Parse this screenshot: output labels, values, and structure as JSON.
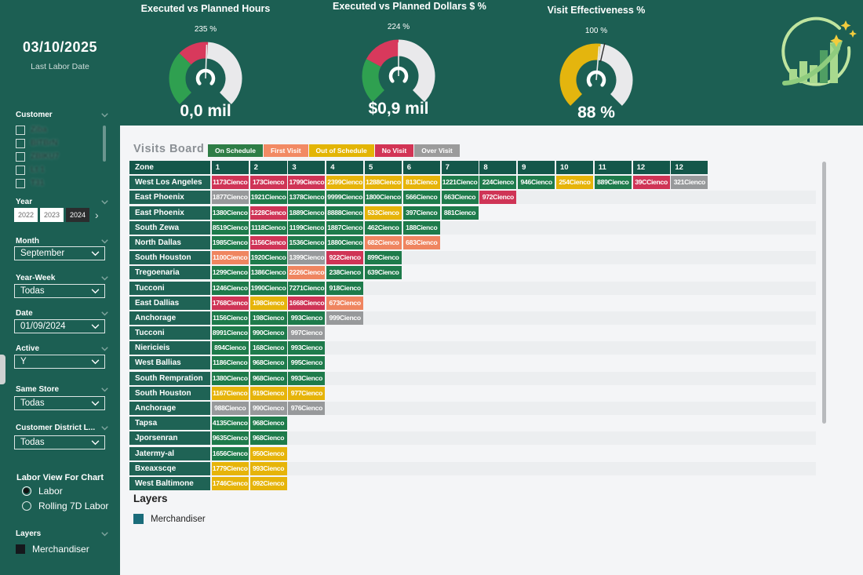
{
  "app": {
    "background": "#1C5F53",
    "panel_background": "#F4F5F7"
  },
  "header": {
    "date": "03/10/2025",
    "date_caption": "Last Labor Date",
    "gauges": [
      {
        "title": "Executed vs Planned Hours",
        "top_label": "235 %",
        "value_label": "0,0 mil",
        "needle_angle": 2,
        "target_tick_angle": null,
        "segments": [
          {
            "color": "#2FA050",
            "from": -135,
            "to": -46
          },
          {
            "color": "#D8395C",
            "from": -46,
            "to": 4
          },
          {
            "color": "#E9E9EB",
            "from": 4,
            "to": 135
          }
        ]
      },
      {
        "title": "Executed vs Planned Dollars $ %",
        "top_label": "224 %",
        "value_label": "$0,9 mil",
        "needle_angle": 0,
        "target_tick_angle": null,
        "segments": [
          {
            "color": "#2FA050",
            "from": -135,
            "to": -62
          },
          {
            "color": "#D8395C",
            "from": -62,
            "to": 0
          },
          {
            "color": "#E9E9EB",
            "from": 0,
            "to": 135
          }
        ]
      },
      {
        "title": "Visit Effectiveness %",
        "top_label": "100 %",
        "value_label": "88 %",
        "needle_angle": 5,
        "target_tick_angle": 13,
        "segments": [
          {
            "color": "#E4B50E",
            "from": -135,
            "to": 7
          },
          {
            "color": "#E9E9EB",
            "from": 7,
            "to": 135
          }
        ]
      }
    ]
  },
  "sidebar": {
    "customer": {
      "label": "Customer",
      "items": [
        "Ziba",
        "BITBrN",
        "ZBIKU7",
        "Lt 1",
        "T31"
      ]
    },
    "year": {
      "label": "Year",
      "options": [
        "2022",
        "2023",
        "2024"
      ],
      "selected": "2024",
      "arrow": "›"
    },
    "month": {
      "label": "Month",
      "value": "September"
    },
    "year_week": {
      "label": "Year-Week",
      "value": "Todas"
    },
    "date": {
      "label": "Date",
      "value": "01/09/2024"
    },
    "active": {
      "label": "Active",
      "value": "Y"
    },
    "same_store": {
      "label": "Same Store",
      "value": "Todas"
    },
    "customer_district": {
      "label": "Customer District L...",
      "value": "Todas"
    },
    "labor_view": {
      "label": "Labor View For Chart",
      "options": [
        {
          "label": "Labor",
          "selected": true
        },
        {
          "label": "Rolling 7D Labor",
          "selected": false
        }
      ]
    },
    "layers": {
      "label": "Layers",
      "items": [
        {
          "label": "Merchandiser",
          "checked": true
        }
      ]
    }
  },
  "main": {
    "title": "Visits Board",
    "legend": [
      {
        "label": "On Schedule",
        "color": "#2E7D46",
        "key": "on"
      },
      {
        "label": "First Visit",
        "color": "#F28A64",
        "key": "first"
      },
      {
        "label": "Out of Schedule",
        "color": "#E3B505",
        "key": "out"
      },
      {
        "label": "No Visit",
        "color": "#D23455",
        "key": "no"
      },
      {
        "label": "Over Visit",
        "color": "#9B9B9B",
        "key": "over"
      }
    ],
    "status_colors": {
      "on": "#1E7B4B",
      "first": "#EF8560",
      "out": "#E6B40A",
      "no": "#CF3456",
      "over": "#97999B"
    },
    "table": {
      "zone_header": "Zone",
      "columns": [
        "1",
        "2",
        "3",
        "4",
        "5",
        "6",
        "7",
        "8",
        "9",
        "10",
        "11",
        "12",
        "12"
      ],
      "rows": [
        {
          "zone": "West Los Angeles",
          "cells": [
            [
              "1173Cienco",
              "no"
            ],
            [
              "173Cienco",
              "no"
            ],
            [
              "1799Cienco",
              "no"
            ],
            [
              "2399Cienco",
              "out"
            ],
            [
              "1288Cienco",
              "out"
            ],
            [
              "813Cienco",
              "out"
            ],
            [
              "1221Cienco",
              "on"
            ],
            [
              "224Cienco",
              "on"
            ],
            [
              "946Cienco",
              "on"
            ],
            [
              "254Cienco",
              "out"
            ],
            [
              "889Cienco",
              "on"
            ],
            [
              "39CCienco",
              "no"
            ],
            [
              "321Cienco",
              "over"
            ]
          ]
        },
        {
          "zone": "East Phoenix",
          "cells": [
            [
              "1877Cienco",
              "over"
            ],
            [
              "1921Cienco",
              "on"
            ],
            [
              "1378Cienco",
              "on"
            ],
            [
              "9999Cienco",
              "on"
            ],
            [
              "1800Cienco",
              "on"
            ],
            [
              "566Cienco",
              "on"
            ],
            [
              "663Cienco",
              "on"
            ],
            [
              "972Cienco",
              "no"
            ]
          ]
        },
        {
          "zone": "East Phoenix",
          "cells": [
            [
              "1380Cienco",
              "on"
            ],
            [
              "1228Cienco",
              "no"
            ],
            [
              "1889Cienco",
              "on"
            ],
            [
              "8888Cienco",
              "on"
            ],
            [
              "533Cienco",
              "out"
            ],
            [
              "397Cienco",
              "on"
            ],
            [
              "881Cienco",
              "on"
            ]
          ]
        },
        {
          "zone": "South Zewa",
          "cells": [
            [
              "8519Cienco",
              "on"
            ],
            [
              "1118Cienco",
              "on"
            ],
            [
              "1199Cienco",
              "on"
            ],
            [
              "1887Cienco",
              "on"
            ],
            [
              "462Cienco",
              "on"
            ],
            [
              "188Cienco",
              "on"
            ]
          ]
        },
        {
          "zone": "North Dallas",
          "cells": [
            [
              "1985Cienco",
              "on"
            ],
            [
              "1156Cienco",
              "no"
            ],
            [
              "1536Cienco",
              "on"
            ],
            [
              "1880Cienco",
              "on"
            ],
            [
              "682Cienco",
              "first"
            ],
            [
              "683Cienco",
              "first"
            ]
          ]
        },
        {
          "zone": "South Houston",
          "cells": [
            [
              "1100Cienco",
              "first"
            ],
            [
              "1920Cienco",
              "on"
            ],
            [
              "1399Cienco",
              "over"
            ],
            [
              "922Cienco",
              "no"
            ],
            [
              "899Cienco",
              "on"
            ]
          ]
        },
        {
          "zone": "Tregoenaria",
          "cells": [
            [
              "1299Cienco",
              "on"
            ],
            [
              "1386Cienco",
              "on"
            ],
            [
              "2226Cienco",
              "first"
            ],
            [
              "238Cienco",
              "on"
            ],
            [
              "639Cienco",
              "on"
            ]
          ]
        },
        {
          "zone": "Tucconi",
          "cells": [
            [
              "1246Cienco",
              "on"
            ],
            [
              "1990Cienco",
              "on"
            ],
            [
              "7271Cienco",
              "on"
            ],
            [
              "918Cienco",
              "on"
            ]
          ]
        },
        {
          "zone": "East Dallias",
          "cells": [
            [
              "1768Cienco",
              "no"
            ],
            [
              "198Cienco",
              "out"
            ],
            [
              "1668Cienco",
              "no"
            ],
            [
              "673Cienco",
              "first"
            ]
          ]
        },
        {
          "zone": "Anchorage",
          "cells": [
            [
              "1156Cienco",
              "on"
            ],
            [
              "198Cienco",
              "on"
            ],
            [
              "993Cienco",
              "on"
            ],
            [
              "999Cienco",
              "over"
            ]
          ]
        },
        {
          "zone": "Tucconi",
          "cells": [
            [
              "8991Cienco",
              "on"
            ],
            [
              "990Cienco",
              "on"
            ],
            [
              "997Cienco",
              "over"
            ]
          ]
        },
        {
          "zone": "Niericieis",
          "cells": [
            [
              "894Cienco",
              "on"
            ],
            [
              "168Cienco",
              "on"
            ],
            [
              "993Cienco",
              "on"
            ]
          ]
        },
        {
          "zone": "West Ballias",
          "cells": [
            [
              "1186Cienco",
              "on"
            ],
            [
              "968Cienco",
              "on"
            ],
            [
              "995Cienco",
              "on"
            ]
          ]
        },
        {
          "zone": "South Rempration",
          "cells": [
            [
              "1380Cienco",
              "on"
            ],
            [
              "968Cienco",
              "on"
            ],
            [
              "993Cienco",
              "on"
            ]
          ]
        },
        {
          "zone": "South Houston",
          "cells": [
            [
              "1167Cienco",
              "out"
            ],
            [
              "919Cienco",
              "out"
            ],
            [
              "977Cienco",
              "out"
            ]
          ]
        },
        {
          "zone": "Anchorage",
          "cells": [
            [
              "988Cienco",
              "over"
            ],
            [
              "990Cienco",
              "over"
            ],
            [
              "976Cienco",
              "over"
            ]
          ]
        },
        {
          "zone": "Tapsa",
          "cells": [
            [
              "4135Cienco",
              "on"
            ],
            [
              "968Cienco",
              "on"
            ]
          ]
        },
        {
          "zone": "Jporsenran",
          "cells": [
            [
              "9635Cienco",
              "on"
            ],
            [
              "968Cienco",
              "on"
            ]
          ]
        },
        {
          "zone": "Jatermy-al",
          "cells": [
            [
              "1656Cienco",
              "on"
            ],
            [
              "950Cienco",
              "out"
            ]
          ]
        },
        {
          "zone": "Bxeaxscqe",
          "cells": [
            [
              "1779Cienco",
              "out"
            ],
            [
              "993Cienco",
              "out"
            ]
          ]
        },
        {
          "zone": "West Baltimone",
          "cells": [
            [
              "1746Cienco",
              "out"
            ],
            [
              "092Cienco",
              "out"
            ]
          ]
        }
      ]
    },
    "layers_section": {
      "title": "Layers",
      "items": [
        {
          "label": "Merchandiser",
          "color": "#1A6C7A"
        }
      ]
    }
  }
}
